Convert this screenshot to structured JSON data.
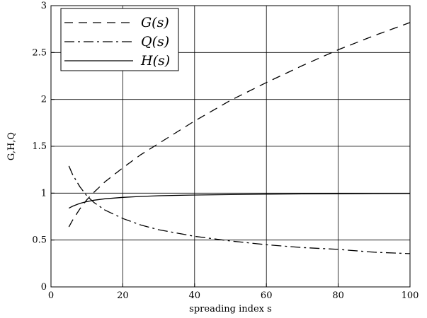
{
  "chart_data": {
    "type": "line",
    "xlabel": "spreading index s",
    "ylabel": "G,H,Q",
    "xlim": [
      0,
      100
    ],
    "ylim": [
      0,
      3
    ],
    "xticks": [
      "0",
      "20",
      "40",
      "60",
      "80",
      "100"
    ],
    "yticks": [
      "0",
      "0.5",
      "1",
      "1.5",
      "2",
      "2.5",
      "3"
    ],
    "grid": true,
    "legend_position": "top-left",
    "series": [
      {
        "name": "G(s)",
        "style": "dashed",
        "color": "#000000",
        "x": [
          5,
          6,
          8,
          10,
          12,
          15,
          20,
          25,
          30,
          40,
          50,
          60,
          70,
          80,
          90,
          100
        ],
        "y": [
          0.64,
          0.71,
          0.83,
          0.93,
          1.01,
          1.12,
          1.27,
          1.41,
          1.53,
          1.77,
          1.99,
          2.18,
          2.36,
          2.53,
          2.68,
          2.82
        ]
      },
      {
        "name": "Q(s)",
        "style": "dashdot",
        "color": "#000000",
        "x": [
          5,
          6,
          8,
          10,
          12,
          15,
          20,
          25,
          30,
          40,
          50,
          60,
          70,
          80,
          90,
          100
        ],
        "y": [
          1.29,
          1.2,
          1.07,
          0.97,
          0.9,
          0.82,
          0.73,
          0.66,
          0.61,
          0.54,
          0.49,
          0.45,
          0.42,
          0.4,
          0.37,
          0.355
        ]
      },
      {
        "name": "H(s)",
        "style": "solid",
        "color": "#000000",
        "x": [
          5,
          6,
          8,
          10,
          12,
          15,
          20,
          25,
          30,
          40,
          50,
          60,
          70,
          80,
          90,
          100
        ],
        "y": [
          0.84,
          0.86,
          0.89,
          0.91,
          0.925,
          0.94,
          0.955,
          0.965,
          0.972,
          0.98,
          0.985,
          0.99,
          0.992,
          0.994,
          0.996,
          0.997
        ]
      }
    ]
  }
}
